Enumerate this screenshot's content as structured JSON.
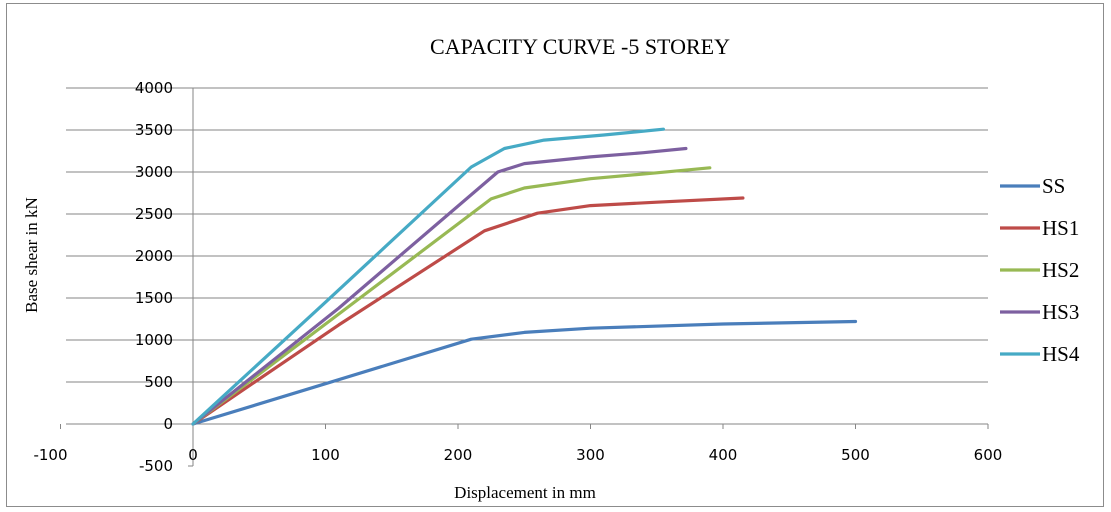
{
  "chart_data": {
    "type": "line",
    "title": "CAPACITY CURVE -5 STOREY",
    "xlabel": "Displacement in  mm",
    "ylabel": "Base shear in kN",
    "xlim": [
      -100,
      600
    ],
    "ylim": [
      -500,
      4000
    ],
    "x_ticks": [
      -100,
      0,
      100,
      200,
      300,
      400,
      500,
      600
    ],
    "y_ticks": [
      -500,
      0,
      500,
      1000,
      1500,
      2000,
      2500,
      3000,
      3500,
      4000
    ],
    "grid": "horizontal",
    "legend_position": "right",
    "series": [
      {
        "name": "SS",
        "color": "#4a7ebb",
        "points": [
          [
            0,
            0
          ],
          [
            100,
            480
          ],
          [
            210,
            1010
          ],
          [
            250,
            1090
          ],
          [
            300,
            1140
          ],
          [
            400,
            1190
          ],
          [
            500,
            1220
          ]
        ]
      },
      {
        "name": "HS1",
        "color": "#be4b48",
        "points": [
          [
            0,
            0
          ],
          [
            110,
            1180
          ],
          [
            220,
            2300
          ],
          [
            260,
            2510
          ],
          [
            300,
            2600
          ],
          [
            350,
            2640
          ],
          [
            415,
            2690
          ]
        ]
      },
      {
        "name": "HS2",
        "color": "#98b954",
        "points": [
          [
            0,
            0
          ],
          [
            110,
            1310
          ],
          [
            225,
            2680
          ],
          [
            250,
            2810
          ],
          [
            300,
            2920
          ],
          [
            350,
            2990
          ],
          [
            390,
            3050
          ]
        ]
      },
      {
        "name": "HS3",
        "color": "#7d60a0",
        "points": [
          [
            0,
            0
          ],
          [
            110,
            1380
          ],
          [
            230,
            3000
          ],
          [
            250,
            3100
          ],
          [
            300,
            3180
          ],
          [
            340,
            3230
          ],
          [
            372,
            3280
          ]
        ]
      },
      {
        "name": "HS4",
        "color": "#46aac5",
        "points": [
          [
            0,
            0
          ],
          [
            100,
            1450
          ],
          [
            210,
            3060
          ],
          [
            235,
            3280
          ],
          [
            265,
            3380
          ],
          [
            310,
            3440
          ],
          [
            355,
            3510
          ]
        ]
      }
    ]
  }
}
